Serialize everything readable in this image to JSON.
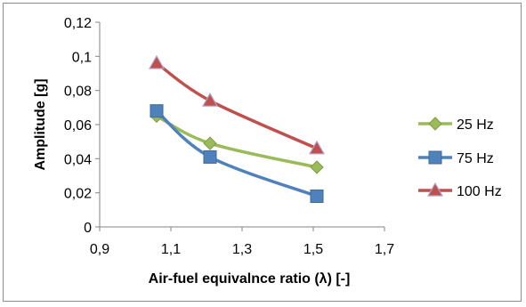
{
  "chart_data": {
    "type": "line",
    "title": "",
    "xlabel": "Air-fuel equivalnce ratio (λ) [-]",
    "ylabel": "Amplitude [g]",
    "xlim": [
      0.9,
      1.7
    ],
    "ylim": [
      0,
      0.12
    ],
    "x_ticks": [
      0.9,
      1.1,
      1.3,
      1.5,
      1.7
    ],
    "x_tick_labels": [
      "0,9",
      "1,1",
      "1,3",
      "1,5",
      "1,7"
    ],
    "y_ticks": [
      0,
      0.02,
      0.04,
      0.06,
      0.08,
      0.1,
      0.12
    ],
    "y_tick_labels": [
      "0",
      "0,02",
      "0,04",
      "0,06",
      "0,08",
      "0,1",
      "0,12"
    ],
    "grid": false,
    "legend_position": "right",
    "series": [
      {
        "name": "25 Hz",
        "color": "#9bbb59",
        "marker": "diamond",
        "x": [
          1.06,
          1.21,
          1.51
        ],
        "y": [
          0.065,
          0.049,
          0.035
        ]
      },
      {
        "name": "75 Hz",
        "color": "#4f81bd",
        "marker": "square",
        "x": [
          1.06,
          1.21,
          1.51
        ],
        "y": [
          0.068,
          0.041,
          0.018
        ]
      },
      {
        "name": "100 Hz",
        "color": "#c0504d",
        "marker": "triangle",
        "x": [
          1.06,
          1.21,
          1.51
        ],
        "y": [
          0.096,
          0.074,
          0.046
        ]
      }
    ]
  }
}
